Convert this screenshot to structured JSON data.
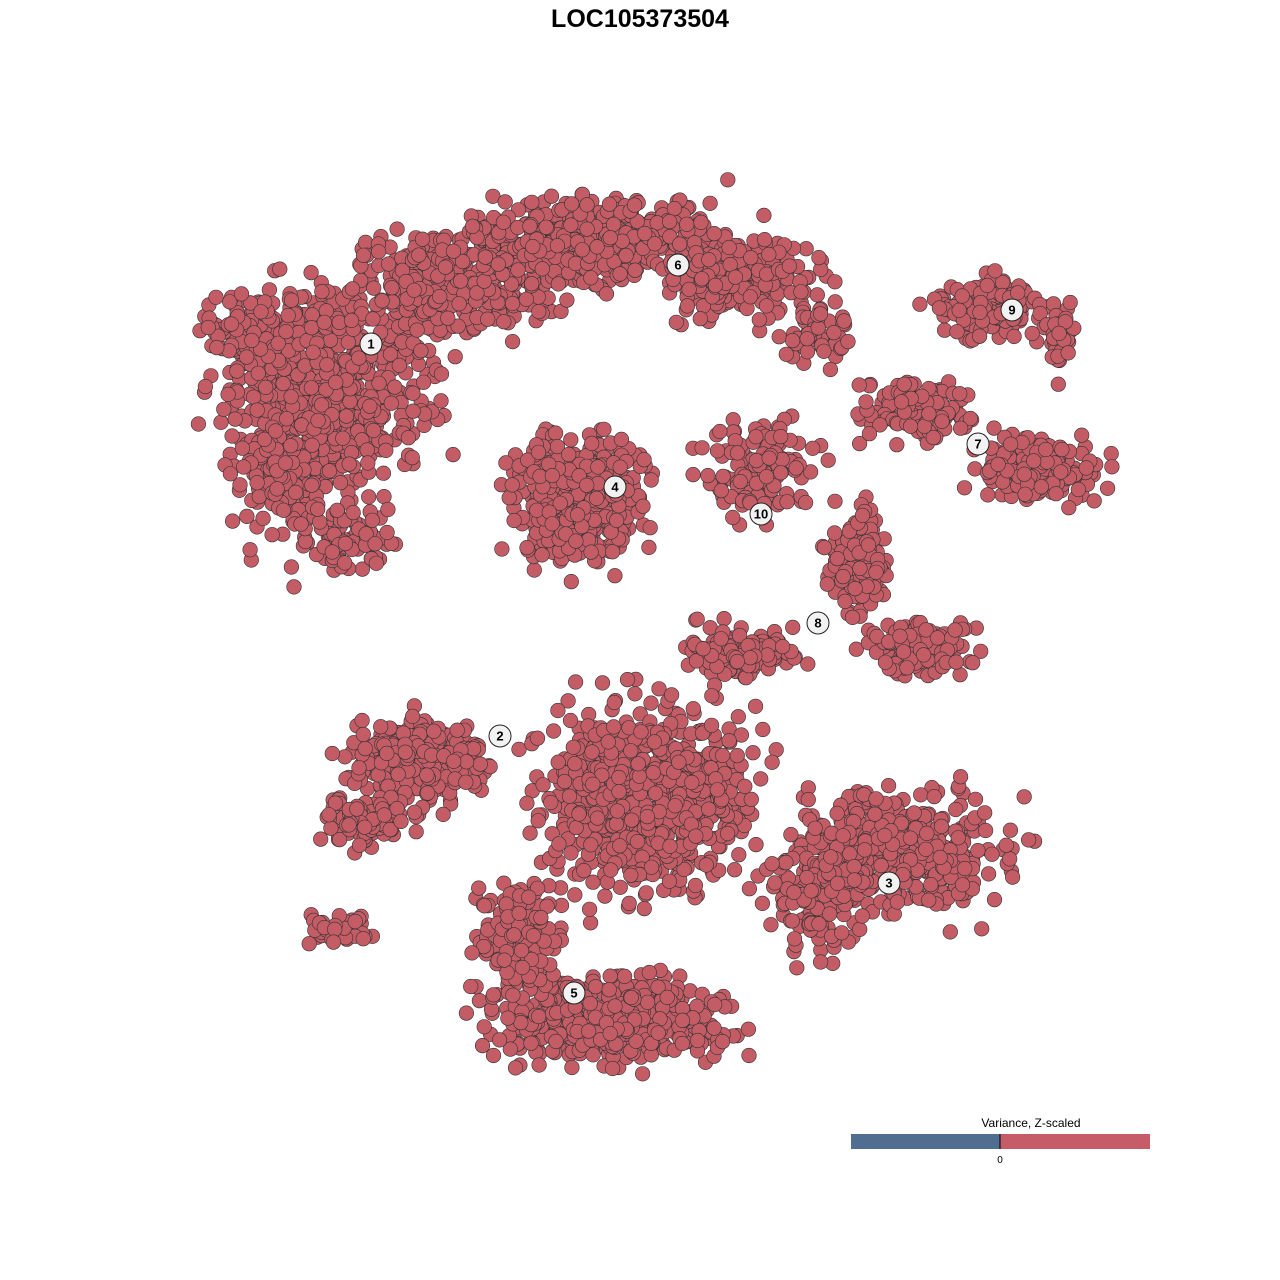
{
  "chart_data": {
    "type": "scatter",
    "title": "LOC105373504",
    "xlabel": "",
    "ylabel": "",
    "axes_visible": false,
    "grid": false,
    "point_color": "#c45c66",
    "point_outline_color": "#333333",
    "clusters": [
      {
        "label": "1",
        "x": -29.4,
        "y": 29.3
      },
      {
        "label": "2",
        "x": -16.5,
        "y": -9.9
      },
      {
        "label": "3",
        "x": 22.4,
        "y": -24.6
      },
      {
        "label": "4",
        "x": -5.0,
        "y": 15.0
      },
      {
        "label": "5",
        "x": -9.1,
        "y": -35.6
      },
      {
        "label": "6",
        "x": 1.3,
        "y": 37.2
      },
      {
        "label": "7",
        "x": 31.3,
        "y": 19.3
      },
      {
        "label": "8",
        "x": 15.3,
        "y": 1.4
      },
      {
        "label": "9",
        "x": 34.7,
        "y": 32.7
      },
      {
        "label": "10",
        "x": 9.6,
        "y": 12.3
      }
    ],
    "legend": {
      "title": "Variance, Z-scaled",
      "placement": "bottom-right",
      "low_color": "#506e8f",
      "high_color": "#c55c67",
      "tick_label": "0"
    }
  }
}
